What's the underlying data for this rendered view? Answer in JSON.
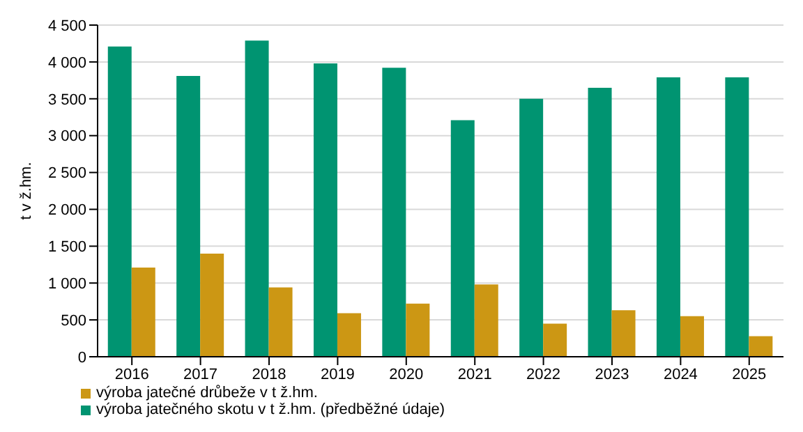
{
  "chart_data": {
    "type": "bar",
    "ylabel": "t v ž.hm.",
    "categories": [
      "2016",
      "2017",
      "2018",
      "2019",
      "2020",
      "2021",
      "2022",
      "2023",
      "2024",
      "2025"
    ],
    "series": [
      {
        "name": "výroba jatečného skotu v t ž.hm. (předběžné údaje)",
        "color": "#009471",
        "values": [
          4210,
          3810,
          4290,
          3980,
          3920,
          3210,
          3500,
          3650,
          3790,
          3790
        ]
      },
      {
        "name": "výroba jatečné drůbeže v t ž.hm.",
        "color": "#cc9714",
        "values": [
          1210,
          1400,
          940,
          590,
          720,
          980,
          450,
          630,
          550,
          280
        ]
      }
    ],
    "ylim": [
      0,
      4500
    ],
    "yticks": [
      0,
      500,
      {
        "value": 1000,
        "label": "1 000"
      },
      {
        "value": 1500,
        "label": "1 500"
      },
      {
        "value": 2000,
        "label": "2 000"
      },
      {
        "value": 2500,
        "label": "2 500"
      },
      {
        "value": 3000,
        "label": "3 000"
      },
      {
        "value": 3500,
        "label": "3 500"
      },
      {
        "value": 4000,
        "label": "4 000"
      },
      {
        "value": 4500,
        "label": "4 500"
      }
    ],
    "grid": "y",
    "legend": "bottom"
  }
}
